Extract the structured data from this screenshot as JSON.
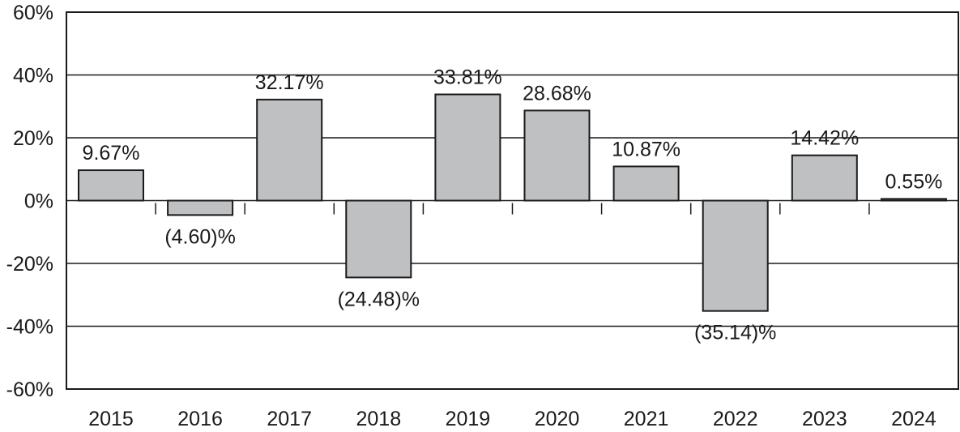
{
  "chart_data": {
    "type": "bar",
    "title": "",
    "xlabel": "",
    "ylabel": "",
    "categories": [
      "2015",
      "2016",
      "2017",
      "2018",
      "2019",
      "2020",
      "2021",
      "2022",
      "2023",
      "2024"
    ],
    "values": [
      9.67,
      -4.6,
      32.17,
      -24.48,
      33.81,
      28.68,
      10.87,
      -35.14,
      14.42,
      0.55
    ],
    "data_labels": [
      "9.67%",
      "(4.60)%",
      "32.17%",
      "(24.48)%",
      "33.81%",
      "28.68%",
      "10.87%",
      "(35.14)%",
      "14.42%",
      "0.55%"
    ],
    "ylim": [
      -60,
      60
    ],
    "yticks": [
      60,
      40,
      20,
      0,
      -20,
      -40,
      -60
    ],
    "ytick_labels": [
      "60%",
      "40%",
      "20%",
      "0%",
      "-20%",
      "-40%",
      "-60%"
    ],
    "grid": true,
    "legend": "none",
    "colors": {
      "bar_fill": "#bfc0c2",
      "bar_stroke": "#1a1a1a",
      "grid": "#1a1a1a",
      "text": "#1a1a1a"
    }
  }
}
